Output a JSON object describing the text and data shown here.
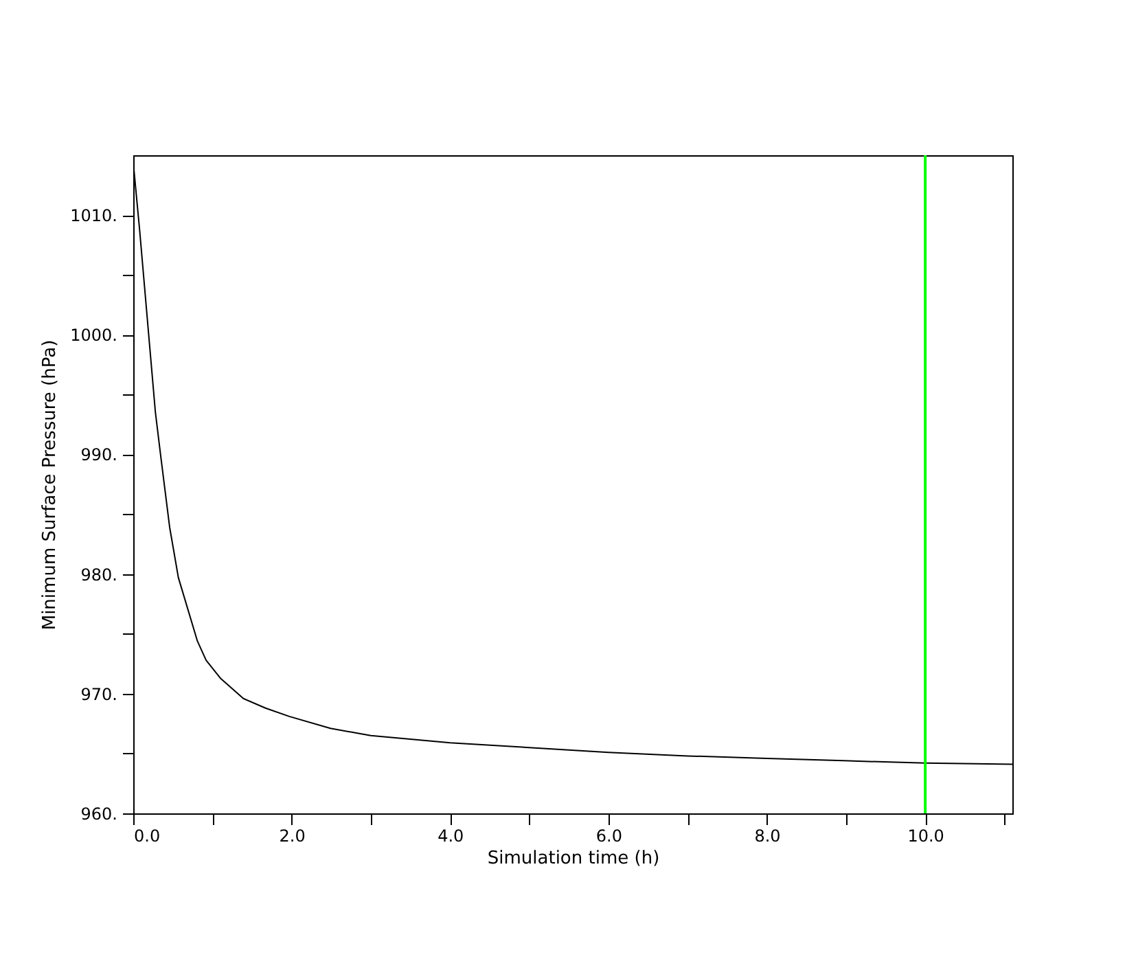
{
  "chart_data": {
    "type": "line",
    "xlabel": "Simulation time (h)",
    "ylabel": "Minimum Surface Pressure (hPa)",
    "x": [
      0,
      0.08,
      0.28,
      0.35,
      0.46,
      0.57,
      0.81,
      0.92,
      1.1,
      1.39,
      1.67,
      1.97,
      2.49,
      2.83,
      3,
      4,
      5,
      6,
      7,
      8,
      8.97,
      10,
      11.1
    ],
    "series": [
      {
        "color": "#000000",
        "values": [
          1014.4,
          1008.8,
          993.5,
          989.7,
          983.9,
          979.7,
          974.4,
          972.8,
          971.3,
          969.6,
          968.8,
          968.1,
          967.1,
          966.7,
          966.5,
          965.9,
          965.5,
          965.1,
          964.8,
          964.6,
          964.4,
          964.2,
          964.1
        ]
      }
    ],
    "xlim": [
      0,
      11.1
    ],
    "xticks": [
      {
        "value": 0,
        "label": "0.0"
      },
      {
        "value": 1,
        "label": null
      },
      {
        "value": 2,
        "label": "2.0"
      },
      {
        "value": 3,
        "label": null
      },
      {
        "value": 4,
        "label": "4.0"
      },
      {
        "value": 5,
        "label": null
      },
      {
        "value": 6,
        "label": "6.0"
      },
      {
        "value": 7,
        "label": null
      },
      {
        "value": 8,
        "label": "8.0"
      },
      {
        "value": 9,
        "label": null
      },
      {
        "value": 10,
        "label": "10.0"
      },
      {
        "value": 11,
        "label": null
      }
    ],
    "ylim": [
      960,
      1015
    ],
    "yticks": [
      {
        "value": 960,
        "label": "960."
      },
      {
        "value": 965,
        "label": null
      },
      {
        "value": 970,
        "label": "970."
      },
      {
        "value": 975,
        "label": null
      },
      {
        "value": 980,
        "label": "980."
      },
      {
        "value": 985,
        "label": null
      },
      {
        "value": 990,
        "label": "990."
      },
      {
        "value": 995,
        "label": null
      },
      {
        "value": 1000,
        "label": "1000."
      },
      {
        "value": 1005,
        "label": null
      },
      {
        "value": 1010,
        "label": "1010."
      }
    ],
    "ref_lines": [
      {
        "axis": "x",
        "value": 10,
        "color": "#00ff00"
      }
    ],
    "grid": false
  }
}
